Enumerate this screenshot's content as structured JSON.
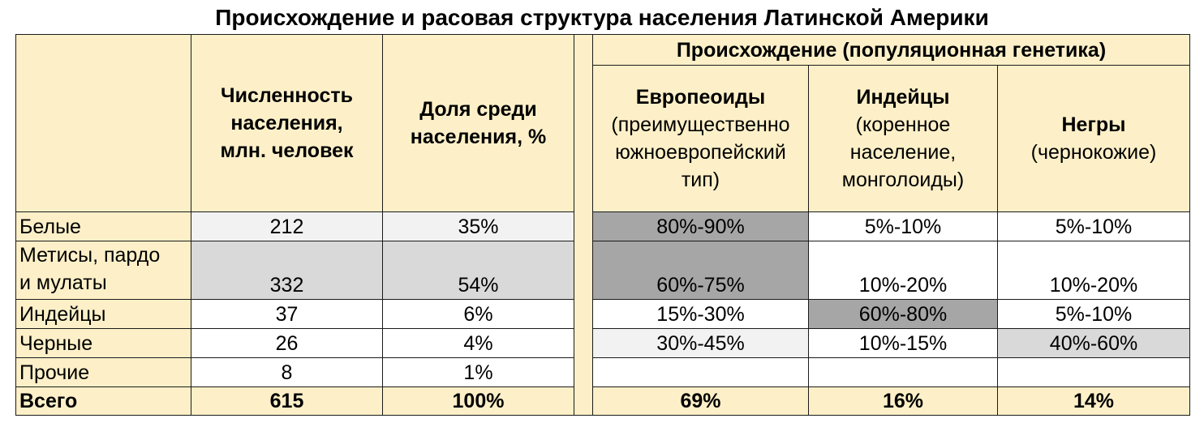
{
  "title": "Происхождение и расовая структура населения Латинской Америки",
  "headers": {
    "population": "Численность населения, млн. человек",
    "share": "Доля среди населения, %",
    "origin_group": "Происхождение (популяционная генетика)",
    "europeans": {
      "name": "Европеоиды",
      "note_lines": [
        "(преимущественно",
        "южноевропейский",
        "тип)"
      ]
    },
    "indians": {
      "name": "Индейцы",
      "note_lines": [
        "(коренное",
        "население,",
        "монголоиды)"
      ]
    },
    "blacks": {
      "name": "Негры",
      "note_lines": [
        "(чернокожие)"
      ]
    }
  },
  "rows": [
    {
      "label": "Белые",
      "population": "212",
      "share": "35%",
      "eur": "80%-90%",
      "ind": "5%-10%",
      "neg": "5%-10%"
    },
    {
      "label_lines": [
        "Метисы, пардо",
        "и мулаты"
      ],
      "population": "332",
      "share": "54%",
      "eur": "60%-75%",
      "ind": "10%-20%",
      "neg": "10%-20%"
    },
    {
      "label": "Индейцы",
      "population": "37",
      "share": "6%",
      "eur": "15%-30%",
      "ind": "60%-80%",
      "neg": "5%-10%"
    },
    {
      "label": "Черные",
      "population": "26",
      "share": "4%",
      "eur": "30%-45%",
      "ind": "10%-15%",
      "neg": "40%-60%"
    },
    {
      "label": "Прочие",
      "population": "8",
      "share": "1%",
      "eur": "",
      "ind": "",
      "neg": ""
    }
  ],
  "total": {
    "label": "Всего",
    "population": "615",
    "share": "100%",
    "eur": "69%",
    "ind": "16%",
    "neg": "14%"
  },
  "colors": {
    "header_bg": "#fdf0c8",
    "light": "#f2f2f2",
    "mid": "#d9d9d9",
    "dark": "#a6a6a6"
  }
}
